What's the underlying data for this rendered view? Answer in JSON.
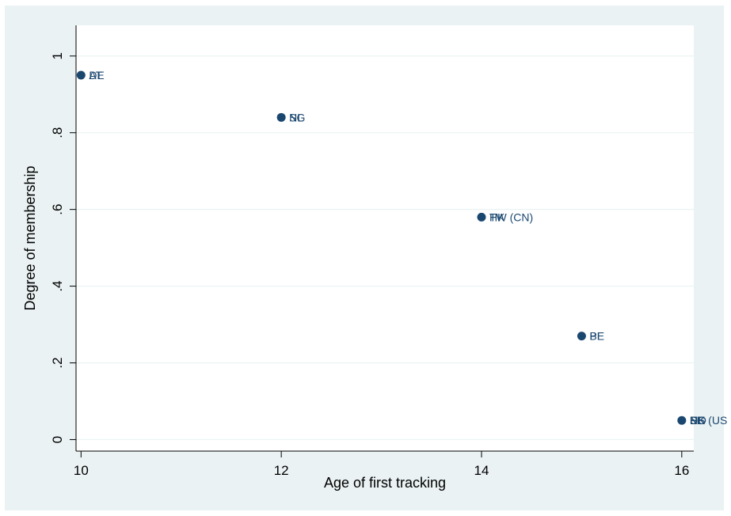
{
  "chart_data": {
    "type": "scatter",
    "title": "",
    "xlabel": "Age of first tracking",
    "ylabel": "Degree of membership",
    "xlim": [
      9.95,
      16.12
    ],
    "ylim": [
      -0.03,
      1.08
    ],
    "xticks": [
      {
        "value": 10,
        "label": "10"
      },
      {
        "value": 12,
        "label": "12"
      },
      {
        "value": 14,
        "label": "14"
      },
      {
        "value": 16,
        "label": "16"
      }
    ],
    "yticks": [
      {
        "value": 0,
        "label": "0"
      },
      {
        "value": 0.2,
        "label": ".2"
      },
      {
        "value": 0.4,
        "label": ".4"
      },
      {
        "value": 0.6,
        "label": ".6"
      },
      {
        "value": 0.8,
        "label": ".8"
      },
      {
        "value": 1,
        "label": "1"
      }
    ],
    "grid": true,
    "legend": "none",
    "colors": {
      "background": "#eaf2f3",
      "plot_area": "#ffffff",
      "grid": "#eaf2f3",
      "marker": "#1a476f",
      "label": "#1a476f"
    },
    "points": [
      {
        "x": 10,
        "y": 0.95,
        "labels": [
          "AT",
          "DE"
        ]
      },
      {
        "x": 12,
        "y": 0.84,
        "labels": [
          "NL",
          "SG"
        ]
      },
      {
        "x": 14,
        "y": 0.58,
        "labels": [
          "HK",
          "TW (CN)"
        ]
      },
      {
        "x": 15,
        "y": 0.27,
        "labels": [
          "BE",
          "PL"
        ]
      },
      {
        "x": 16,
        "y": 0.05,
        "labels": [
          "FI",
          "SE",
          "UK",
          "US",
          "NO",
          "EE",
          "DK (US"
        ]
      }
    ]
  }
}
